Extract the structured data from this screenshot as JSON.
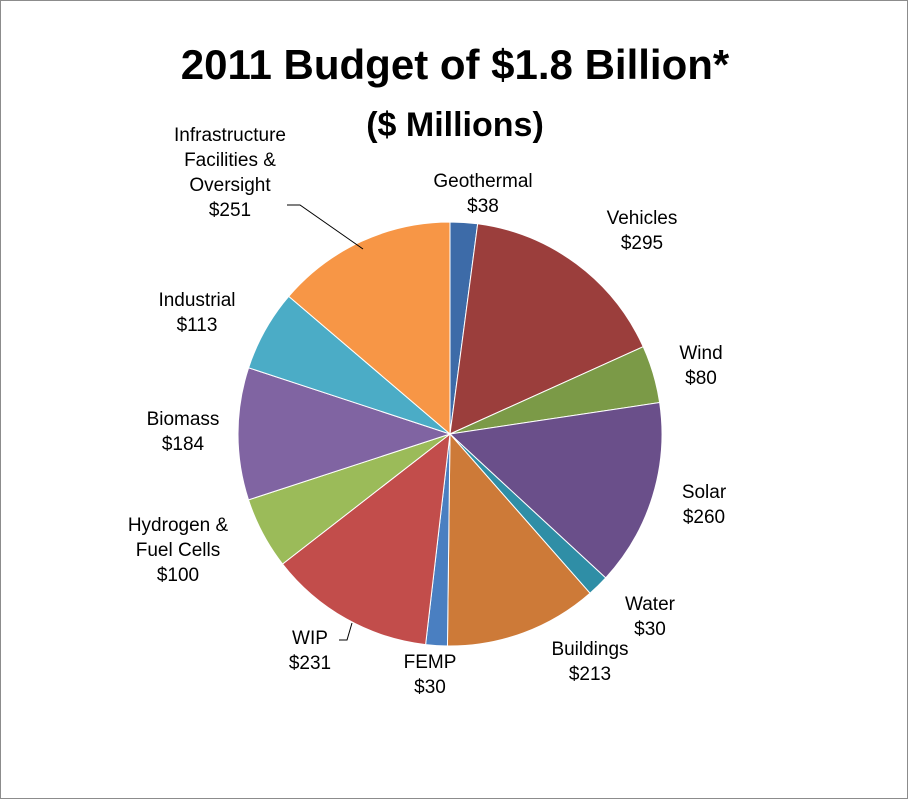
{
  "chart_data": {
    "type": "pie",
    "title": "2011 Budget of $1.8 Billion*",
    "subtitle": "($ Millions)",
    "slices": [
      {
        "name": "Geothermal",
        "value": 38,
        "value_label": "$38",
        "color": "#3d6ba8"
      },
      {
        "name": "Vehicles",
        "value": 295,
        "value_label": "$295",
        "color": "#9b3e3c"
      },
      {
        "name": "Wind",
        "value": 80,
        "value_label": "$80",
        "color": "#7b9a47"
      },
      {
        "name": "Solar",
        "value": 260,
        "value_label": "$260",
        "color": "#6a4f8a"
      },
      {
        "name": "Water",
        "value": 30,
        "value_label": "$30",
        "color": "#2f8ea6"
      },
      {
        "name": "Buildings",
        "value": 213,
        "value_label": "$213",
        "color": "#cd7a38"
      },
      {
        "name": "FEMP",
        "value": 30,
        "value_label": "$30",
        "color": "#4a7fc1"
      },
      {
        "name": "WIP",
        "value": 231,
        "value_label": "$231",
        "color": "#c24d4b"
      },
      {
        "name": "Hydrogen & Fuel Cells",
        "value": 100,
        "value_label": "$100",
        "color": "#9bbb59"
      },
      {
        "name": "Biomass",
        "value": 184,
        "value_label": "$184",
        "color": "#8064a2"
      },
      {
        "name": "Industrial",
        "value": 113,
        "value_label": "$113",
        "color": "#4bacc6"
      },
      {
        "name": "Infrastructure Facilities & Oversight",
        "value": 251,
        "value_label": "$251",
        "color": "#f79646"
      }
    ],
    "labels": [
      {
        "lines": [
          "Geothermal",
          "$38"
        ]
      },
      {
        "lines": [
          "Vehicles",
          "$295"
        ]
      },
      {
        "lines": [
          "Wind",
          "$80"
        ]
      },
      {
        "lines": [
          "Solar",
          "$260"
        ]
      },
      {
        "lines": [
          "Water",
          "$30"
        ]
      },
      {
        "lines": [
          "Buildings",
          "$213"
        ]
      },
      {
        "lines": [
          "FEMP",
          "$30"
        ]
      },
      {
        "lines": [
          "WIP",
          "$231"
        ]
      },
      {
        "lines": [
          "Hydrogen &",
          "Fuel Cells",
          "$100"
        ]
      },
      {
        "lines": [
          "Biomass",
          "$184"
        ]
      },
      {
        "lines": [
          "Industrial",
          "$113"
        ]
      },
      {
        "lines": [
          "Infrastructure",
          "Facilities &",
          "Oversight",
          "$251"
        ]
      }
    ]
  }
}
